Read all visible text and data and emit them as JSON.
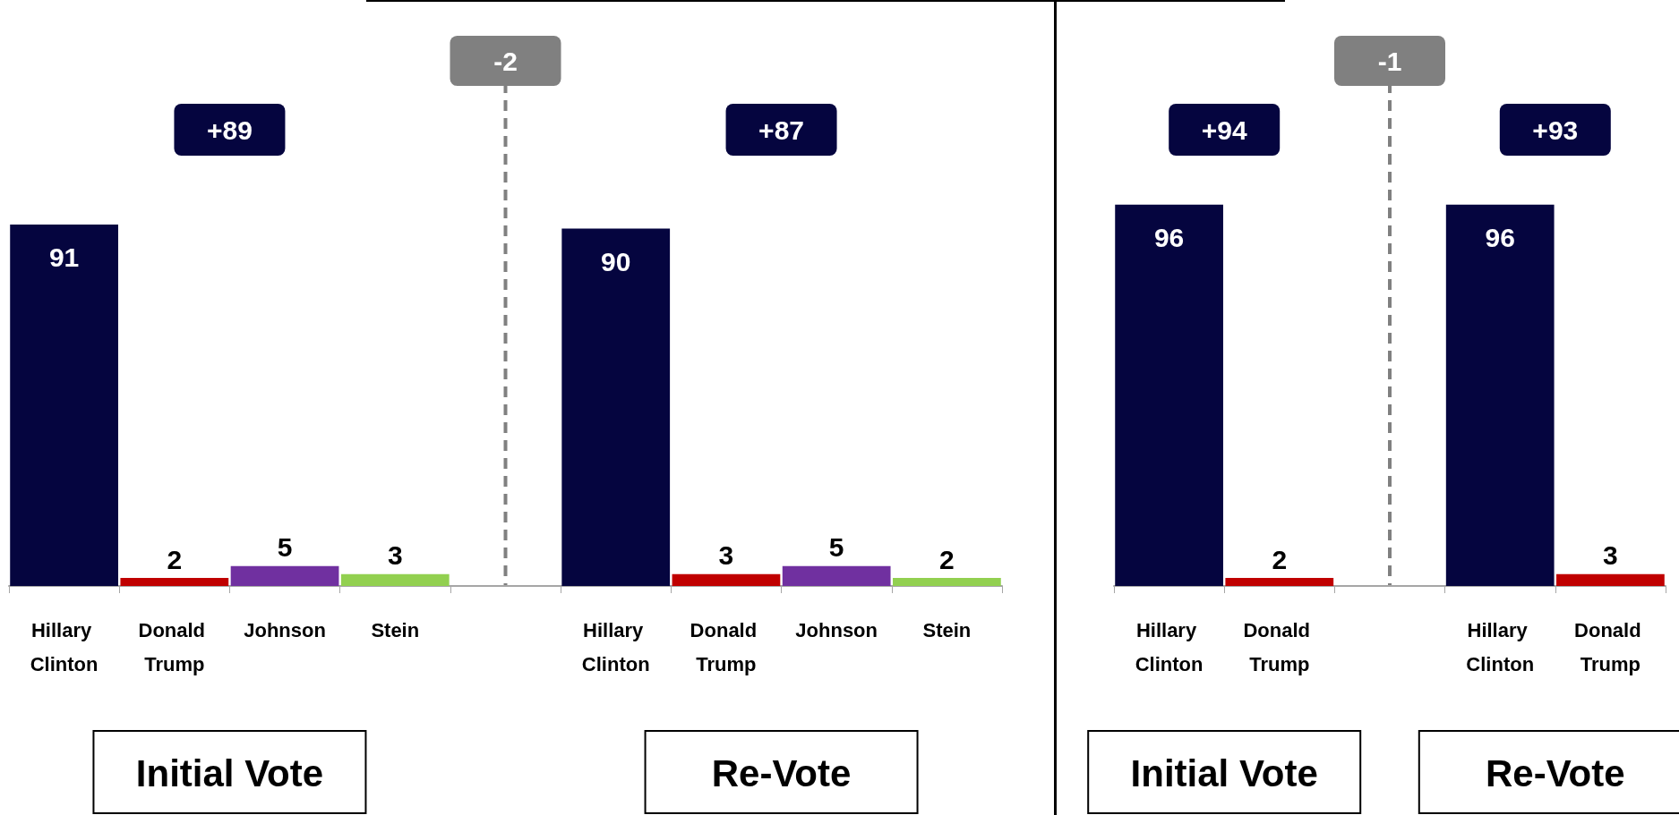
{
  "chart_data": [
    {
      "type": "bar",
      "categories": [
        "Hillary Clinton",
        "Donald Trump",
        "Johnson",
        "Stein",
        null,
        "Hillary Clinton",
        "Donald Trump",
        "Johnson",
        "Stein"
      ],
      "values": [
        91,
        2,
        5,
        3,
        null,
        90,
        3,
        5,
        2
      ],
      "colors": [
        "#05053f",
        "#c00000",
        "#7030a0",
        "#92d050",
        null,
        "#05053f",
        "#c00000",
        "#7030a0",
        "#92d050"
      ],
      "data_labels": true,
      "annotations": [
        "+89",
        "+87",
        "-2",
        "Initial Vote",
        "Re-Vote"
      ]
    },
    {
      "type": "bar",
      "categories": [
        "Hillary Clinton",
        "Donald Trump",
        null,
        "Hillary Clinton",
        "Donald Trump"
      ],
      "values": [
        96,
        2,
        null,
        96,
        3
      ],
      "colors": [
        "#05053f",
        "#c00000",
        null,
        "#05053f",
        "#c00000"
      ],
      "data_labels": true,
      "annotations": [
        "+94",
        "+93",
        "-1",
        "Initial Vote",
        "Re-Vote"
      ]
    }
  ]
}
